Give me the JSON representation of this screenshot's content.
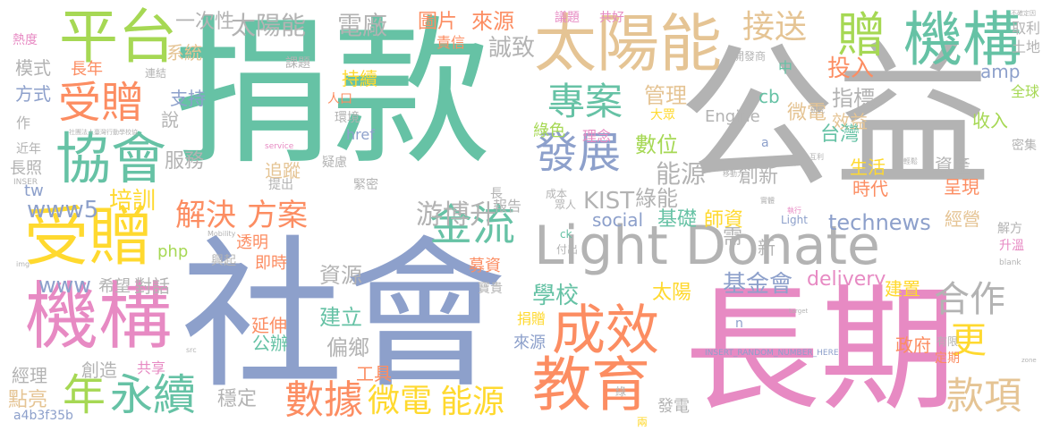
{
  "title": "Word cloud",
  "palette": {
    "green": "#66c2a5",
    "orange": "#fc8d62",
    "blue": "#8da0cb",
    "pink": "#e78ac3",
    "lime": "#a6d854",
    "yellow": "#ffd92f",
    "tan": "#e5c494",
    "gray": "#b3b3b3"
  },
  "words": [
    {
      "text": "捐款",
      "color": "green"
    },
    {
      "text": "公益",
      "color": "gray"
    },
    {
      "text": "社會",
      "color": "blue"
    },
    {
      "text": "長期",
      "color": "pink"
    },
    {
      "text": "Light Donate",
      "color": "gray"
    },
    {
      "text": "太陽能",
      "color": "tan"
    },
    {
      "text": "平台",
      "color": "lime"
    },
    {
      "text": "贈",
      "color": "lime"
    },
    {
      "text": "機構",
      "color": "green"
    },
    {
      "text": "受贈",
      "color": "orange"
    },
    {
      "text": "協會",
      "color": "green"
    },
    {
      "text": "受贈",
      "color": "yellow"
    },
    {
      "text": "機構",
      "color": "pink"
    },
    {
      "text": "專案",
      "color": "green"
    },
    {
      "text": "發展",
      "color": "blue"
    },
    {
      "text": "金流",
      "color": "green"
    },
    {
      "text": "成效",
      "color": "orange"
    },
    {
      "text": "教育",
      "color": "orange"
    },
    {
      "text": "合作",
      "color": "gray"
    },
    {
      "text": "更",
      "color": "yellow"
    },
    {
      "text": "款項",
      "color": "tan"
    },
    {
      "text": "永續",
      "color": "green"
    },
    {
      "text": "年",
      "color": "lime"
    },
    {
      "text": "數據",
      "color": "orange"
    },
    {
      "text": "微電",
      "color": "yellow"
    },
    {
      "text": "能源",
      "color": "yellow"
    },
    {
      "text": "接送",
      "color": "tan"
    },
    {
      "text": "太陽能",
      "color": "gray"
    },
    {
      "text": "電廠",
      "color": "gray"
    },
    {
      "text": "解決",
      "color": "orange"
    },
    {
      "text": "方案",
      "color": "orange"
    },
    {
      "text": "游博升",
      "color": "gray"
    },
    {
      "text": "圖片",
      "color": "orange"
    },
    {
      "text": "來源",
      "color": "orange"
    },
    {
      "text": "一次性",
      "color": "gray"
    },
    {
      "text": "系統",
      "color": "tan"
    },
    {
      "text": "誠致",
      "color": "gray"
    },
    {
      "text": "投入",
      "color": "orange"
    },
    {
      "text": "指標",
      "color": "gray"
    },
    {
      "text": "管理",
      "color": "tan"
    },
    {
      "text": "數位",
      "color": "lime"
    },
    {
      "text": "微電",
      "color": "tan"
    },
    {
      "text": "效益",
      "color": "tan"
    },
    {
      "text": "台灣",
      "color": "green"
    },
    {
      "text": "收入",
      "color": "lime"
    },
    {
      "text": "資產",
      "color": "gray"
    },
    {
      "text": "創新",
      "color": "gray"
    },
    {
      "text": "能源",
      "color": "gray"
    },
    {
      "text": "生活",
      "color": "yellow"
    },
    {
      "text": "時代",
      "color": "orange"
    },
    {
      "text": "呈現",
      "color": "orange"
    },
    {
      "text": "綠能",
      "color": "gray"
    },
    {
      "text": "KIST",
      "color": "gray"
    },
    {
      "text": "基礎",
      "color": "green"
    },
    {
      "text": "師資",
      "color": "yellow"
    },
    {
      "text": "technews",
      "color": "blue"
    },
    {
      "text": "經營",
      "color": "tan"
    },
    {
      "text": "培訓",
      "color": "yellow"
    },
    {
      "text": "服務",
      "color": "gray"
    },
    {
      "text": "追蹤",
      "color": "tan"
    },
    {
      "text": "資源",
      "color": "gray"
    },
    {
      "text": "學校",
      "color": "green"
    },
    {
      "text": "基金會",
      "color": "blue"
    },
    {
      "text": "建立",
      "color": "green"
    },
    {
      "text": "偏鄉",
      "color": "gray"
    },
    {
      "text": "太陽",
      "color": "yellow"
    },
    {
      "text": "建置",
      "color": "yellow"
    },
    {
      "text": "政府",
      "color": "orange"
    },
    {
      "text": "延伸",
      "color": "orange"
    },
    {
      "text": "公辦",
      "color": "green"
    },
    {
      "text": "穩定",
      "color": "gray"
    },
    {
      "text": "創造",
      "color": "gray"
    },
    {
      "text": "經理",
      "color": "gray"
    },
    {
      "text": "點亮",
      "color": "tan"
    },
    {
      "text": "共享",
      "color": "pink"
    },
    {
      "text": "工具",
      "color": "orange"
    },
    {
      "text": "對話",
      "color": "gray"
    },
    {
      "text": "希望",
      "color": "gray"
    },
    {
      "text": "www",
      "color": "blue"
    },
    {
      "text": "www5",
      "color": "blue"
    },
    {
      "text": "tw",
      "color": "blue"
    },
    {
      "text": "php",
      "color": "lime"
    },
    {
      "text": "delivery",
      "color": "pink"
    },
    {
      "text": "social",
      "color": "blue"
    },
    {
      "text": "Engine",
      "color": "gray"
    },
    {
      "text": "amp",
      "color": "blue"
    },
    {
      "text": "cb",
      "color": "green"
    },
    {
      "text": "a4b3f35b",
      "color": "blue"
    },
    {
      "text": "模式",
      "color": "gray"
    },
    {
      "text": "方式",
      "color": "blue"
    },
    {
      "text": "長年",
      "color": "orange"
    },
    {
      "text": "支持",
      "color": "blue"
    },
    {
      "text": "熱度",
      "color": "pink"
    },
    {
      "text": "課題",
      "color": "gray"
    },
    {
      "text": "持續",
      "color": "yellow"
    },
    {
      "text": "說",
      "color": "gray"
    },
    {
      "text": "責信",
      "color": "orange"
    },
    {
      "text": "議題",
      "color": "pink"
    },
    {
      "text": "共好",
      "color": "pink"
    },
    {
      "text": "取利",
      "color": "gray"
    },
    {
      "text": "土地",
      "color": "gray"
    },
    {
      "text": "全球",
      "color": "lime"
    },
    {
      "text": "密集",
      "color": "gray"
    },
    {
      "text": "升溫",
      "color": "pink"
    },
    {
      "text": "解方",
      "color": "gray"
    },
    {
      "text": "長照",
      "color": "gray"
    },
    {
      "text": "近年",
      "color": "gray"
    },
    {
      "text": "理念",
      "color": "pink"
    },
    {
      "text": "綠色",
      "color": "lime"
    },
    {
      "text": "人口",
      "color": "orange"
    },
    {
      "text": "連結",
      "color": "gray"
    },
    {
      "text": "環境",
      "color": "gray"
    },
    {
      "text": "href",
      "color": "blue"
    },
    {
      "text": "報告",
      "color": "gray"
    },
    {
      "text": "成本",
      "color": "gray"
    },
    {
      "text": "需",
      "color": "gray"
    },
    {
      "text": "新",
      "color": "gray"
    },
    {
      "text": "即時",
      "color": "orange"
    },
    {
      "text": "透明",
      "color": "orange"
    },
    {
      "text": "募資",
      "color": "orange"
    },
    {
      "text": "寶貴",
      "color": "gray"
    },
    {
      "text": "捐贈",
      "color": "yellow"
    },
    {
      "text": "來源",
      "color": "blue"
    },
    {
      "text": "發電",
      "color": "gray"
    },
    {
      "text": "兩",
      "color": "yellow"
    },
    {
      "text": "定期",
      "color": "orange"
    },
    {
      "text": "有限",
      "color": "gray"
    },
    {
      "text": "INSERT_RANDOM_NUMBER_HERE",
      "color": "blue"
    },
    {
      "text": "Light",
      "color": "blue"
    },
    {
      "text": "眾人",
      "color": "gray"
    },
    {
      "text": "中",
      "color": "green"
    },
    {
      "text": "開發商",
      "color": "gray"
    },
    {
      "text": "大眾",
      "color": "yellow"
    },
    {
      "text": "興起",
      "color": "gray"
    },
    {
      "text": "提出",
      "color": "gray"
    },
    {
      "text": "疑慮",
      "color": "gray"
    },
    {
      "text": "緊密",
      "color": "gray"
    },
    {
      "text": "作",
      "color": "gray"
    },
    {
      "text": "長",
      "color": "gray"
    },
    {
      "text": "付出",
      "color": "gray"
    },
    {
      "text": "ck",
      "color": "green"
    },
    {
      "text": "n",
      "color": "blue"
    },
    {
      "text": "a",
      "color": "blue"
    },
    {
      "text": "綠",
      "color": "gray"
    },
    {
      "text": "INSER",
      "color": "gray"
    },
    {
      "text": "service",
      "color": "pink"
    },
    {
      "text": "blank",
      "color": "gray"
    },
    {
      "text": "不確定因",
      "color": "gray"
    },
    {
      "text": "移動力",
      "color": "gray"
    },
    {
      "text": "互利",
      "color": "gray"
    },
    {
      "text": "研究",
      "color": "gray"
    },
    {
      "text": "執行",
      "color": "pink"
    },
    {
      "text": "實體",
      "color": "gray"
    },
    {
      "text": "社團法人臺灣行動學校協",
      "color": "gray"
    },
    {
      "text": "zone",
      "color": "gray"
    },
    {
      "text": "src",
      "color": "gray"
    },
    {
      "text": "img",
      "color": "gray"
    },
    {
      "text": "Mobility",
      "color": "gray"
    },
    {
      "text": "target",
      "color": "gray"
    },
    {
      "text": "輕鬆",
      "color": "gray"
    }
  ]
}
